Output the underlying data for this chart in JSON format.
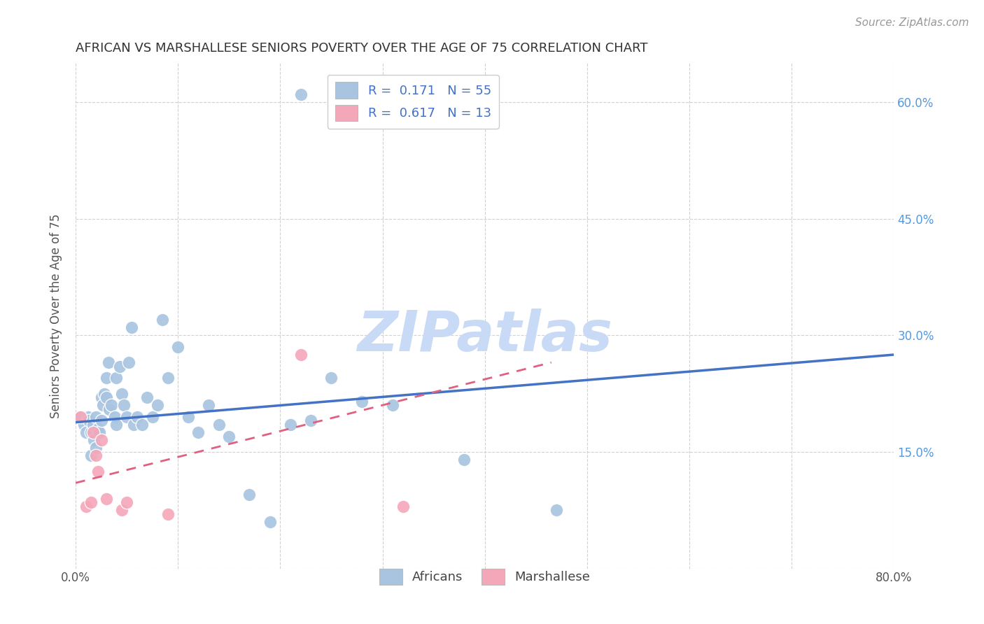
{
  "title": "AFRICAN VS MARSHALLESE SENIORS POVERTY OVER THE AGE OF 75 CORRELATION CHART",
  "source": "Source: ZipAtlas.com",
  "ylabel": "Seniors Poverty Over the Age of 75",
  "xlim": [
    0,
    0.8
  ],
  "ylim": [
    0,
    0.65
  ],
  "african_R": 0.171,
  "african_N": 55,
  "marshallese_R": 0.617,
  "marshallese_N": 13,
  "african_color": "#a8c4e0",
  "marshallese_color": "#f4a7b9",
  "trendline_african_color": "#4472c4",
  "trendline_marshallese_color": "#e06080",
  "watermark_text": "ZIPatlas",
  "watermark_color": "#c8daf5",
  "grid_color": "#cccccc",
  "african_x": [
    0.005,
    0.008,
    0.01,
    0.012,
    0.013,
    0.015,
    0.015,
    0.017,
    0.018,
    0.02,
    0.02,
    0.022,
    0.023,
    0.025,
    0.025,
    0.027,
    0.028,
    0.03,
    0.03,
    0.032,
    0.033,
    0.035,
    0.038,
    0.04,
    0.04,
    0.043,
    0.045,
    0.047,
    0.05,
    0.052,
    0.055,
    0.057,
    0.06,
    0.065,
    0.07,
    0.075,
    0.08,
    0.085,
    0.09,
    0.1,
    0.11,
    0.12,
    0.13,
    0.14,
    0.15,
    0.17,
    0.19,
    0.21,
    0.23,
    0.25,
    0.28,
    0.31,
    0.38,
    0.47,
    0.22
  ],
  "african_y": [
    0.195,
    0.185,
    0.175,
    0.195,
    0.19,
    0.175,
    0.145,
    0.185,
    0.165,
    0.195,
    0.155,
    0.18,
    0.175,
    0.22,
    0.19,
    0.21,
    0.225,
    0.245,
    0.22,
    0.265,
    0.205,
    0.21,
    0.195,
    0.245,
    0.185,
    0.26,
    0.225,
    0.21,
    0.195,
    0.265,
    0.31,
    0.185,
    0.195,
    0.185,
    0.22,
    0.195,
    0.21,
    0.32,
    0.245,
    0.285,
    0.195,
    0.175,
    0.21,
    0.185,
    0.17,
    0.095,
    0.06,
    0.185,
    0.19,
    0.245,
    0.215,
    0.21,
    0.14,
    0.075,
    0.61
  ],
  "marshallese_x": [
    0.005,
    0.01,
    0.015,
    0.017,
    0.02,
    0.022,
    0.025,
    0.03,
    0.045,
    0.05,
    0.09,
    0.22,
    0.32
  ],
  "marshallese_y": [
    0.195,
    0.08,
    0.085,
    0.175,
    0.145,
    0.125,
    0.165,
    0.09,
    0.075,
    0.085,
    0.07,
    0.275,
    0.08
  ],
  "african_trend_x0": 0.0,
  "african_trend_x1": 0.8,
  "african_trend_y0": 0.188,
  "african_trend_y1": 0.275,
  "marshallese_trend_x0": 0.0,
  "marshallese_trend_x1": 0.465,
  "marshallese_trend_y0": 0.11,
  "marshallese_trend_y1": 0.265,
  "title_fontsize": 13,
  "axis_label_fontsize": 12,
  "tick_fontsize": 12,
  "legend_fontsize": 13,
  "source_fontsize": 11
}
